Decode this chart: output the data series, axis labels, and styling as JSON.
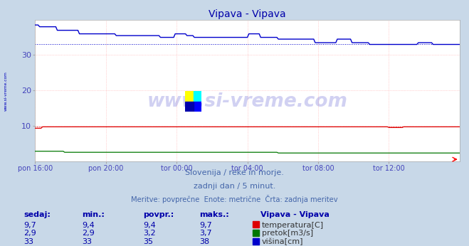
{
  "title": "Vipava - Vipava",
  "title_color": "#0000aa",
  "bg_color": "#c8d8e8",
  "plot_bg_color": "#ffffff",
  "grid_color": "#ffaaaa",
  "xlabel_color": "#4444bb",
  "ylabel_color": "#4444bb",
  "watermark_text": "www.si-vreme.com",
  "watermark_color": "#0000bb",
  "subtitle_color": "#4466aa",
  "subtitle1": "Slovenija / reke in morje.",
  "subtitle2": "zadnji dan / 5 minut.",
  "subtitle3": "Meritve: povprečne  Enote: metrične  Črta: zadnja meritev",
  "xtick_labels": [
    "pon 16:00",
    "pon 20:00",
    "tor 00:00",
    "tor 04:00",
    "tor 08:00",
    "tor 12:00"
  ],
  "xtick_positions": [
    0,
    48,
    96,
    144,
    192,
    240
  ],
  "ytick_values": [
    10,
    20,
    30
  ],
  "ylim": [
    0,
    40
  ],
  "xlim_max": 288,
  "n_points": 289,
  "temp_color": "#dd0000",
  "flow_color": "#007700",
  "height_color": "#0000cc",
  "temp_avg": 9.7,
  "height_avg": 33.0,
  "legend_station": "Vipava - Vipava",
  "legend_temp": "temperatura[C]",
  "legend_flow": "pretok[m3/s]",
  "legend_height": "višina[cm]",
  "table_headers": [
    "sedaj:",
    "min.:",
    "povpr.:",
    "maks.:"
  ],
  "table_color": "#0000aa",
  "temp_value": "9,7",
  "temp_min": "9,4",
  "temp_avg_str": "9,4",
  "temp_max": "9,7",
  "flow_value": "2,9",
  "flow_min": "2,9",
  "flow_avg_str": "3,2",
  "flow_max": "3,7",
  "height_value": "33",
  "height_min": "33",
  "height_avg_str": "35",
  "height_max": "38"
}
